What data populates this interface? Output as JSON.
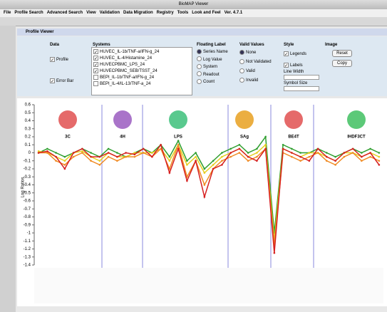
{
  "window": {
    "title": "BioMAP Viewer"
  },
  "menu": [
    "File",
    "Profile Search",
    "Advanced Search",
    "View",
    "Validation",
    "Data Migration",
    "Registry",
    "Tools",
    "Look and Feel",
    "Ver. 4.7.1"
  ],
  "panel": {
    "title": "Profile Viewer",
    "data": {
      "heading": "Data",
      "options": [
        "Profile",
        "Error Bar"
      ]
    },
    "systems": {
      "heading": "Systems",
      "items": [
        "HUVEC_IL-1b/TNF-a/IFN-g_24",
        "HUVEC_IL-4/Histamine_24",
        "HUVECPBMC_LPS_24",
        "HUVECPBMC_SEB/TSST_24",
        "BEPI_IL-1b/TNF-a/IFN-g_24",
        "BEPI_IL-4/IL-13/TNF-a_24"
      ]
    },
    "floating_label": {
      "heading": "Floating Label",
      "options": [
        "Series Name",
        "Log Value",
        "System",
        "Readout",
        "Count"
      ]
    },
    "valid_values": {
      "heading": "Valid Values",
      "options": [
        "None",
        "Not Validated",
        "Valid",
        "Invalid"
      ]
    },
    "style": {
      "heading": "Style",
      "options": [
        "Legends",
        "Labels"
      ],
      "line_width": "Line Width",
      "symbol_size": "Symbol Size"
    },
    "image": {
      "heading": "Image",
      "buttons": [
        "Reset",
        "Copy"
      ]
    }
  },
  "chart_data": {
    "type": "line",
    "y_label": "Log Ratios",
    "groups": [
      "3C",
      "4H",
      "LPS",
      "SAg",
      "BE4T",
      "IHDF3CT"
    ],
    "ylim": [
      -1.4,
      0.6
    ],
    "yticks": [
      0.6,
      0.5,
      0.4,
      0.3,
      0.2,
      0.1,
      0,
      -0.1,
      -0.2,
      -0.3,
      -0.4,
      -0.5,
      -0.6,
      -0.7,
      -0.8,
      -0.9,
      -1,
      -1.1,
      -1.2,
      -1.3,
      -1.4
    ],
    "series": [
      {
        "name": "HUVEC_IL-1b/TNF-a/IFN-g_24",
        "color": "#2e9e2e",
        "values": [
          0,
          0.05,
          0,
          -0.05,
          0,
          0.05,
          0,
          -0.05,
          0.05,
          0,
          -0.05,
          0,
          0.05,
          0,
          0.1,
          -0.05,
          0.15,
          -0.1,
          0,
          -0.2,
          -0.1,
          0,
          0.05,
          0.1,
          0,
          0.05,
          0.2,
          -1.0,
          0.1,
          0.05,
          0,
          0,
          0.05,
          0,
          -0.05,
          0,
          0.05,
          0,
          0.05,
          0
        ]
      },
      {
        "name": "HUVEC_IL-4/Histamine_24",
        "color": "#e6cf1e",
        "values": [
          0.02,
          0,
          -0.05,
          -0.1,
          0,
          0.02,
          -0.05,
          -0.1,
          0,
          -0.05,
          -0.05,
          0,
          0,
          0,
          0.05,
          -0.1,
          0.1,
          -0.15,
          -0.05,
          -0.25,
          -0.15,
          -0.05,
          0,
          0.05,
          -0.05,
          0,
          0.1,
          -1.1,
          0.05,
          0,
          -0.05,
          0,
          0,
          -0.05,
          -0.1,
          0,
          0,
          -0.05,
          0,
          -0.05
        ]
      },
      {
        "name": "HUVECPBMC_LPS_24",
        "color": "#f08a22",
        "values": [
          0,
          0,
          -0.1,
          -0.15,
          -0.05,
          0,
          -0.1,
          -0.15,
          -0.05,
          -0.1,
          -0.05,
          -0.05,
          0,
          -0.05,
          0.05,
          -0.2,
          0.1,
          -0.3,
          -0.1,
          -0.4,
          -0.2,
          -0.1,
          -0.05,
          0,
          -0.1,
          -0.05,
          0.05,
          -1.15,
          0,
          -0.05,
          -0.1,
          -0.05,
          0,
          -0.1,
          -0.15,
          -0.05,
          0,
          -0.1,
          -0.05,
          -0.1
        ]
      },
      {
        "name": "HUVECPBMC_SEB/TSST_24",
        "color": "#d62020",
        "values": [
          0,
          0.02,
          -0.05,
          -0.2,
          0,
          0.05,
          -0.05,
          -0.05,
          0,
          -0.05,
          0,
          -0.02,
          0.05,
          -0.05,
          0.1,
          -0.25,
          0.05,
          -0.35,
          -0.1,
          -0.55,
          -0.2,
          -0.15,
          0,
          0.05,
          -0.05,
          -0.1,
          0.05,
          -1.25,
          0.05,
          0,
          -0.05,
          -0.1,
          0.05,
          -0.05,
          -0.1,
          0,
          0.05,
          -0.05,
          0,
          -0.15
        ]
      }
    ]
  }
}
